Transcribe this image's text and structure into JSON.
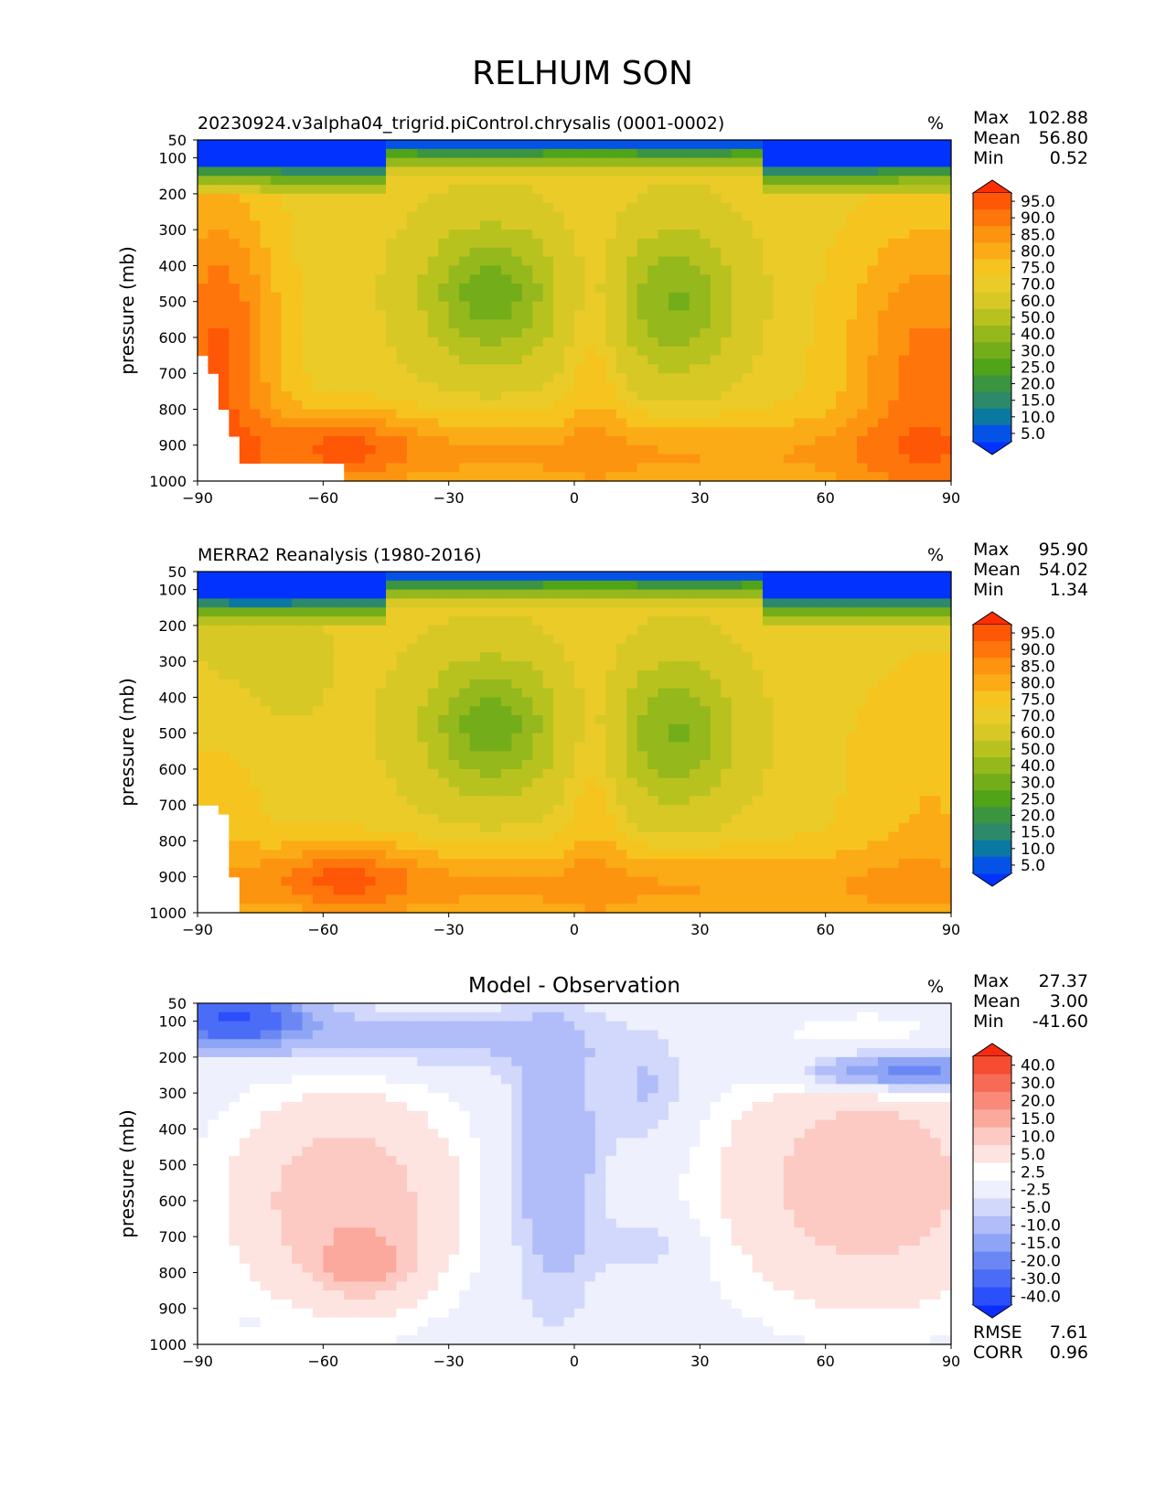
{
  "figure": {
    "title": "RELHUM SON"
  },
  "colors": {
    "rh_levels": [
      "#0233fe",
      "#0552e6",
      "#0b78a2",
      "#2c8a6a",
      "#3a9440",
      "#4fa418",
      "#73ae1a",
      "#95b81c",
      "#b8c21f",
      "#d7c826",
      "#ebcb28",
      "#f6c41f",
      "#fbab16",
      "#fd9410",
      "#fe760b",
      "#fe5706",
      "#fe2e02"
    ],
    "diff_levels": [
      "#0c2dfc",
      "#2b4ffb",
      "#4a6cf7",
      "#6a87f3",
      "#8ea4f5",
      "#b0bdf9",
      "#d1d8fb",
      "#eef0fd",
      "#ffffff",
      "#fde4e1",
      "#fccac2",
      "#fba99d",
      "#f98a7a",
      "#f76a56",
      "#f64c32",
      "#f52a10"
    ],
    "axis": "#000000"
  },
  "chart_data": [
    {
      "type": "heatmap",
      "subtitle": "20230924.v3alpha04_trigrid.piControl.chrysalis (0001-0002)",
      "units": "%",
      "ylabel": "pressure (mb)",
      "xlim": [
        -90,
        90
      ],
      "ylim": [
        1000,
        50
      ],
      "x_ticks": [
        "−90",
        "−60",
        "−30",
        "0",
        "30",
        "60",
        "90"
      ],
      "y_ticks": [
        "50",
        "100",
        "200",
        "300",
        "400",
        "500",
        "600",
        "700",
        "800",
        "900",
        "1000"
      ],
      "stats": [
        {
          "label": "Max",
          "value": "102.88"
        },
        {
          "label": "Mean",
          "value": "56.80"
        },
        {
          "label": "Min",
          "value": "0.52"
        }
      ],
      "levels": [
        "95.0",
        "90.0",
        "85.0",
        "80.0",
        "75.0",
        "70.0",
        "60.0",
        "50.0",
        "40.0",
        "30.0",
        "25.0",
        "20.0",
        "15.0",
        "10.0",
        "5.0"
      ],
      "grid": false
    },
    {
      "type": "heatmap",
      "subtitle": "MERRA2 Reanalysis (1980-2016)",
      "units": "%",
      "ylabel": "pressure (mb)",
      "xlim": [
        -90,
        90
      ],
      "ylim": [
        1000,
        50
      ],
      "x_ticks": [
        "−90",
        "−60",
        "−30",
        "0",
        "30",
        "60",
        "90"
      ],
      "y_ticks": [
        "50",
        "100",
        "200",
        "300",
        "400",
        "500",
        "600",
        "700",
        "800",
        "900",
        "1000"
      ],
      "stats": [
        {
          "label": "Max",
          "value": "95.90"
        },
        {
          "label": "Mean",
          "value": "54.02"
        },
        {
          "label": "Min",
          "value": "1.34"
        }
      ],
      "levels": [
        "95.0",
        "90.0",
        "85.0",
        "80.0",
        "75.0",
        "70.0",
        "60.0",
        "50.0",
        "40.0",
        "30.0",
        "25.0",
        "20.0",
        "15.0",
        "10.0",
        "5.0"
      ],
      "grid": false
    },
    {
      "type": "heatmap",
      "subtitle": "Model - Observation",
      "units": "%",
      "ylabel": "pressure (mb)",
      "xlim": [
        -90,
        90
      ],
      "ylim": [
        1000,
        50
      ],
      "x_ticks": [
        "−90",
        "−60",
        "−30",
        "0",
        "30",
        "60",
        "90"
      ],
      "y_ticks": [
        "50",
        "100",
        "200",
        "300",
        "400",
        "500",
        "600",
        "700",
        "800",
        "900",
        "1000"
      ],
      "stats": [
        {
          "label": "Max",
          "value": "27.37"
        },
        {
          "label": "Mean",
          "value": "3.00"
        },
        {
          "label": "Min",
          "value": "-41.60"
        }
      ],
      "levels": [
        "40.0",
        "30.0",
        "20.0",
        "15.0",
        "10.0",
        "5.0",
        "2.5",
        "-2.5",
        "-5.0",
        "-10.0",
        "-15.0",
        "-20.0",
        "-30.0",
        "-40.0"
      ],
      "extra_stats": [
        {
          "label": "RMSE",
          "value": "7.61"
        },
        {
          "label": "CORR",
          "value": "0.96"
        }
      ],
      "grid": false
    }
  ]
}
